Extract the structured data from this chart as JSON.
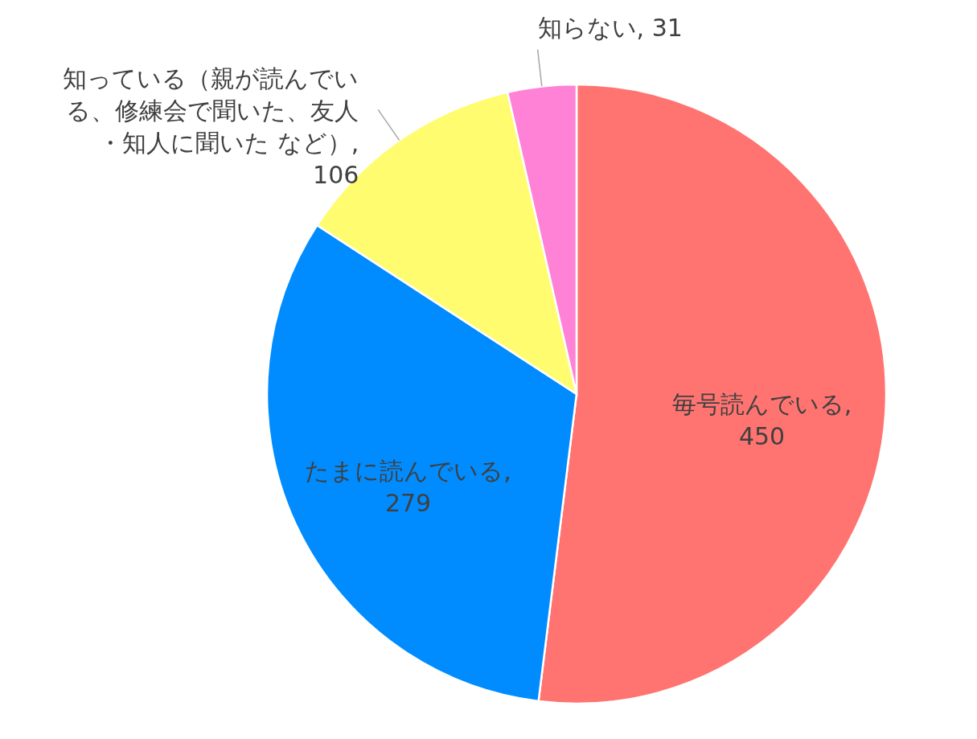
{
  "chart_data": {
    "type": "pie",
    "categories": [
      "毎号読んでいる",
      "たまに読んでいる",
      "知っている（親が読んでいる、修練会で聞いた、友人・知人に聞いた など）",
      "知らない"
    ],
    "values": [
      450,
      279,
      106,
      31
    ],
    "colors": [
      "#ff7470",
      "#008cff",
      "#fffc70",
      "#ff82d6"
    ],
    "value_labels": [
      ", 450",
      ", 279",
      ", 106",
      ", 31"
    ]
  }
}
